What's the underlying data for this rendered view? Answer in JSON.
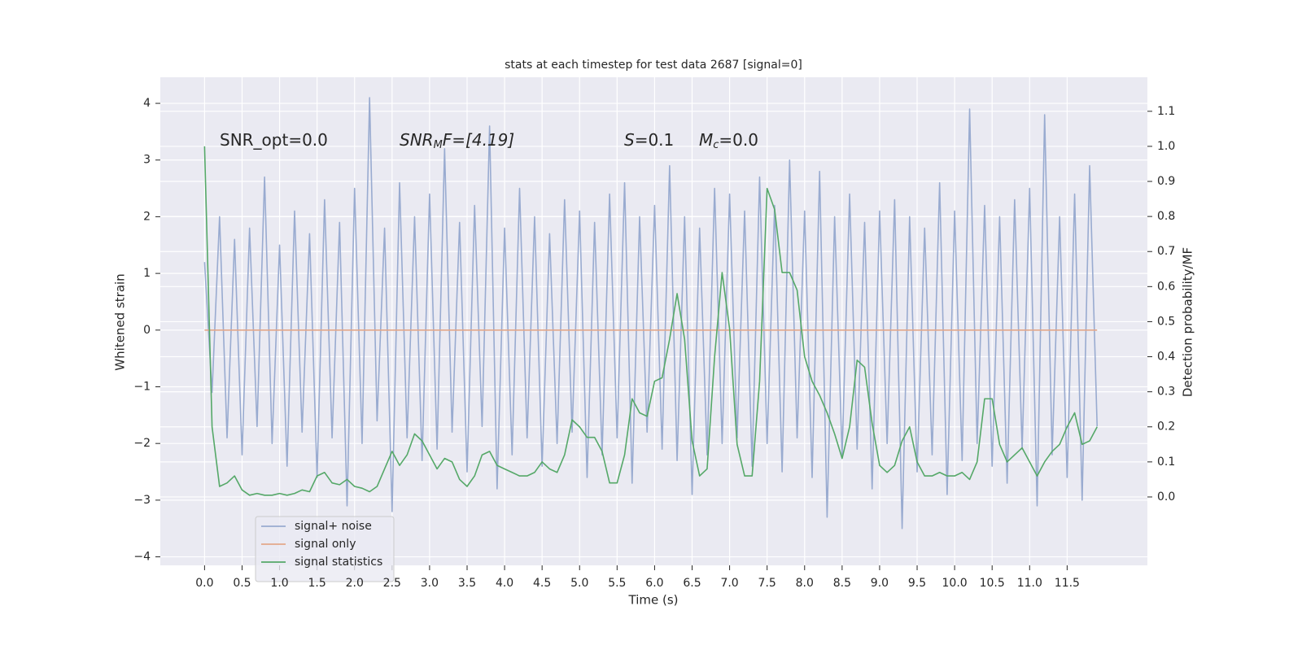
{
  "chart_data": {
    "type": "line",
    "title": "stats at each timestep for test data 2687 [signal=0]",
    "xlabel": "Time (s)",
    "ylabel": "Whitened strain",
    "y2label": "Detection probability/MF",
    "annotations": [
      [
        "SNR_opt=0.0"
      ],
      [
        "SNR",
        "M",
        "F=[4.19]"
      ],
      [
        "S",
        "=0.1"
      ],
      [
        "M",
        "c",
        "=0.0"
      ]
    ],
    "x": [
      0,
      0.1,
      0.2,
      0.3,
      0.4,
      0.5,
      0.6,
      0.7,
      0.8,
      0.9,
      1.0,
      1.1,
      1.2,
      1.3,
      1.4,
      1.5,
      1.6,
      1.7,
      1.8,
      1.9,
      2.0,
      2.1,
      2.2,
      2.3,
      2.4,
      2.5,
      2.6,
      2.7,
      2.8,
      2.9,
      3.0,
      3.1,
      3.2,
      3.3,
      3.4,
      3.5,
      3.6,
      3.7,
      3.8,
      3.9,
      4.0,
      4.1,
      4.2,
      4.3,
      4.4,
      4.5,
      4.6,
      4.7,
      4.8,
      4.9,
      5.0,
      5.1,
      5.2,
      5.3,
      5.4,
      5.5,
      5.6,
      5.7,
      5.8,
      5.9,
      6.0,
      6.1,
      6.2,
      6.3,
      6.4,
      6.5,
      6.6,
      6.7,
      6.8,
      6.9,
      7.0,
      7.1,
      7.2,
      7.3,
      7.4,
      7.5,
      7.6,
      7.7,
      7.8,
      7.9,
      8.0,
      8.1,
      8.2,
      8.3,
      8.4,
      8.5,
      8.6,
      8.7,
      8.8,
      8.9,
      9.0,
      9.1,
      9.2,
      9.3,
      9.4,
      9.5,
      9.6,
      9.7,
      9.8,
      9.9,
      10.0,
      10.1,
      10.2,
      10.3,
      10.4,
      10.5,
      10.6,
      10.7,
      10.8,
      10.9,
      11.0,
      11.1,
      11.2,
      11.3,
      11.4,
      11.5,
      11.6,
      11.7,
      11.8,
      11.9
    ],
    "series": [
      {
        "name": "signal+ noise",
        "color": "#99abd0",
        "values": [
          1.2,
          -1.1,
          2.0,
          -1.9,
          1.6,
          -2.2,
          1.8,
          -1.7,
          2.7,
          -2.0,
          1.5,
          -2.4,
          2.1,
          -1.8,
          1.7,
          -2.6,
          2.3,
          -1.9,
          1.9,
          -3.1,
          2.5,
          -2.0,
          4.1,
          -1.6,
          1.8,
          -3.2,
          2.6,
          -1.9,
          2.0,
          -2.3,
          2.4,
          -2.1,
          3.2,
          -1.8,
          1.9,
          -2.5,
          2.2,
          -1.7,
          3.6,
          -2.8,
          1.8,
          -2.2,
          2.5,
          -1.9,
          2.0,
          -2.4,
          1.7,
          -2.0,
          2.3,
          -1.8,
          2.1,
          -2.6,
          1.9,
          -2.2,
          2.4,
          -1.9,
          2.6,
          -2.7,
          2.0,
          -1.8,
          2.2,
          -2.1,
          2.9,
          -2.3,
          2.0,
          -2.9,
          1.8,
          -2.2,
          2.5,
          -2.0,
          2.4,
          -1.9,
          2.1,
          -2.4,
          2.7,
          -2.0,
          2.2,
          -2.5,
          3.0,
          -1.9,
          2.1,
          -2.6,
          2.8,
          -3.3,
          2.0,
          -2.2,
          2.4,
          -2.1,
          1.9,
          -2.8,
          2.1,
          -2.0,
          2.3,
          -3.5,
          2.0,
          -2.5,
          1.8,
          -2.2,
          2.6,
          -2.9,
          2.1,
          -2.3,
          3.9,
          -2.0,
          2.2,
          -2.4,
          2.0,
          -2.7,
          2.3,
          -2.1,
          2.5,
          -3.1,
          3.8,
          -2.2,
          2.0,
          -2.6,
          2.4,
          -3.0,
          2.9,
          -1.7
        ]
      },
      {
        "name": "signal only",
        "color": "#e3a88a",
        "values": [
          0,
          0,
          0,
          0,
          0,
          0,
          0,
          0,
          0,
          0,
          0,
          0,
          0,
          0,
          0,
          0,
          0,
          0,
          0,
          0,
          0,
          0,
          0,
          0,
          0,
          0,
          0,
          0,
          0,
          0,
          0,
          0,
          0,
          0,
          0,
          0,
          0,
          0,
          0,
          0,
          0,
          0,
          0,
          0,
          0,
          0,
          0,
          0,
          0,
          0,
          0,
          0,
          0,
          0,
          0,
          0,
          0,
          0,
          0,
          0,
          0,
          0,
          0,
          0,
          0,
          0,
          0,
          0,
          0,
          0,
          0,
          0,
          0,
          0,
          0,
          0,
          0,
          0,
          0,
          0,
          0,
          0,
          0,
          0,
          0,
          0,
          0,
          0,
          0,
          0,
          0,
          0,
          0,
          0,
          0,
          0,
          0,
          0,
          0,
          0,
          0,
          0,
          0,
          0,
          0,
          0,
          0,
          0,
          0,
          0,
          0,
          0,
          0,
          0,
          0,
          0,
          0,
          0,
          0,
          0
        ]
      },
      {
        "name": "signal statistics",
        "color": "#55a868",
        "axis": "y2",
        "values": [
          1.0,
          0.2,
          0.03,
          0.04,
          0.06,
          0.02,
          0.005,
          0.01,
          0.005,
          0.005,
          0.01,
          0.005,
          0.01,
          0.02,
          0.015,
          0.06,
          0.07,
          0.04,
          0.035,
          0.05,
          0.03,
          0.025,
          0.015,
          0.03,
          0.08,
          0.13,
          0.09,
          0.12,
          0.18,
          0.16,
          0.12,
          0.08,
          0.11,
          0.1,
          0.05,
          0.03,
          0.06,
          0.12,
          0.13,
          0.09,
          0.08,
          0.07,
          0.06,
          0.06,
          0.07,
          0.1,
          0.08,
          0.07,
          0.12,
          0.22,
          0.2,
          0.17,
          0.17,
          0.13,
          0.04,
          0.04,
          0.12,
          0.28,
          0.24,
          0.23,
          0.33,
          0.34,
          0.45,
          0.58,
          0.45,
          0.16,
          0.06,
          0.08,
          0.4,
          0.64,
          0.48,
          0.15,
          0.06,
          0.06,
          0.33,
          0.88,
          0.82,
          0.64,
          0.64,
          0.59,
          0.4,
          0.33,
          0.29,
          0.24,
          0.18,
          0.11,
          0.2,
          0.39,
          0.37,
          0.21,
          0.09,
          0.07,
          0.09,
          0.16,
          0.2,
          0.1,
          0.06,
          0.06,
          0.07,
          0.06,
          0.06,
          0.07,
          0.05,
          0.1,
          0.28,
          0.28,
          0.15,
          0.1,
          0.12,
          0.14,
          0.1,
          0.06,
          0.1,
          0.13,
          0.15,
          0.2,
          0.24,
          0.15,
          0.16,
          0.2
        ]
      }
    ],
    "xlim": [
      -0.59,
      12.57
    ],
    "xticks": [
      {
        "value": 0,
        "label": "0.0"
      },
      0.5,
      {
        "value": 1,
        "label": "1.0"
      },
      1.5,
      {
        "value": 2,
        "label": "2.0"
      },
      2.5,
      {
        "value": 3,
        "label": "3.0"
      },
      3.5,
      {
        "value": 4,
        "label": "4.0"
      },
      4.5,
      {
        "value": 5,
        "label": "5.0"
      },
      5.5,
      {
        "value": 6,
        "label": "6.0"
      },
      6.5,
      {
        "value": 7,
        "label": "7.0"
      },
      7.5,
      {
        "value": 8,
        "label": "8.0"
      },
      8.5,
      {
        "value": 9,
        "label": "9.0"
      },
      9.5,
      {
        "value": 10,
        "label": "10.0"
      },
      10.5,
      {
        "value": 11,
        "label": "11.0"
      },
      11.5
    ],
    "ylim": [
      -4.15,
      4.46
    ],
    "yticks": [
      {
        "value": -4,
        "label": "−4"
      },
      {
        "value": -3,
        "label": "−3"
      },
      {
        "value": -2,
        "label": "−2"
      },
      {
        "value": -1,
        "label": "−1"
      },
      0,
      1,
      2,
      3,
      4
    ],
    "y2lim": [
      -0.195,
      1.197
    ],
    "y2ticks": [
      {
        "value": 0,
        "label": "0.0"
      },
      0.1,
      0.2,
      0.3,
      0.4,
      0.5,
      0.6,
      0.7,
      0.8,
      0.9,
      {
        "value": 1,
        "label": "1.0"
      },
      1.1
    ],
    "grid": true,
    "legend": "lower left"
  }
}
